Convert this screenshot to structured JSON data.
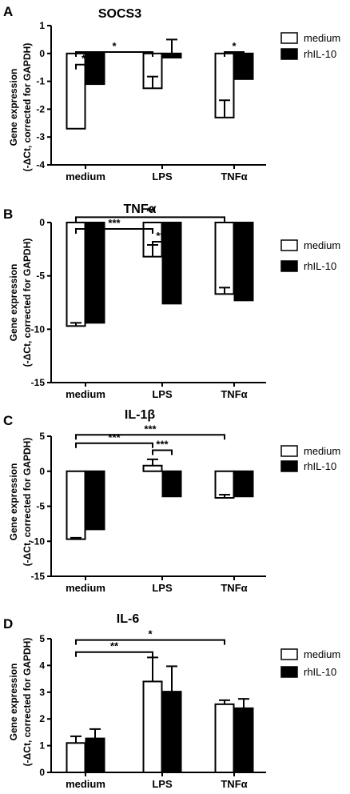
{
  "charts": [
    {
      "panel_letter": "A",
      "title": "SOCS3",
      "ylabel": [
        "Gene expression",
        "(-ΔCt, corrected for GAPDH)"
      ],
      "legend": [
        "medium",
        "rhIL-10"
      ]
    },
    {
      "panel_letter": "B",
      "title": "TNFα",
      "ylabel": [
        "Gene expression",
        "(-ΔCt, corrected for GAPDH)"
      ],
      "legend": [
        "medium",
        "rhIL-10"
      ]
    },
    {
      "panel_letter": "C",
      "title": "IL-1β",
      "ylabel": [
        "Gene expression",
        "(-ΔCt, corrected for GAPDH)"
      ],
      "legend": [
        "medium",
        "rhIL-10"
      ]
    },
    {
      "panel_letter": "D",
      "title": "IL-6",
      "ylabel": [
        "Gene expression",
        "(-ΔCt, corrected for GAPDH)"
      ],
      "legend": [
        "medium",
        "rhIL-10"
      ]
    }
  ],
  "chart_data": [
    {
      "type": "bar",
      "title": "SOCS3",
      "categories": [
        "medium",
        "LPS",
        "TNFα"
      ],
      "ylim": [
        -4,
        1
      ],
      "yticks": [
        1,
        0,
        -1,
        -2,
        -3,
        -4
      ],
      "series": [
        {
          "name": "medium",
          "fill": "#ffffff",
          "values": [
            -2.7,
            -1.25,
            -2.3
          ],
          "errors": [
            0.0,
            0.42,
            0.62
          ]
        },
        {
          "name": "rhIL-10",
          "fill": "#000000",
          "values": [
            -1.1,
            -0.15,
            -0.92
          ],
          "errors": [
            0.22,
            0.65,
            0.52
          ]
        }
      ],
      "significance": [
        {
          "label": "**",
          "from": [
            0,
            0
          ],
          "to": [
            0,
            1
          ],
          "y": -0.4
        },
        {
          "label": "*",
          "from": [
            0,
            0
          ],
          "to": [
            1,
            0
          ],
          "y": 0.05
        },
        {
          "label": "*",
          "from": [
            2,
            0
          ],
          "to": [
            2,
            1
          ],
          "y": 0.05
        }
      ]
    },
    {
      "type": "bar",
      "title": "TNFα",
      "categories": [
        "medium",
        "LPS",
        "TNFα"
      ],
      "ylim": [
        -15,
        0
      ],
      "yticks": [
        0,
        -5,
        -10,
        -15
      ],
      "series": [
        {
          "name": "medium",
          "fill": "#ffffff",
          "values": [
            -9.7,
            -3.2,
            -6.7
          ],
          "errors": [
            0.3,
            1.1,
            0.6
          ]
        },
        {
          "name": "rhIL-10",
          "fill": "#000000",
          "values": [
            -9.4,
            -7.6,
            -7.3
          ],
          "errors": [
            0.25,
            0.75,
            0.2
          ]
        }
      ],
      "significance": [
        {
          "label": "***",
          "from": [
            1,
            0
          ],
          "to": [
            1,
            1
          ],
          "y": -1.8
        },
        {
          "label": "***",
          "from": [
            0,
            0
          ],
          "to": [
            1,
            0
          ],
          "y": -0.6
        },
        {
          "label": "**",
          "from": [
            0,
            0
          ],
          "to": [
            2,
            0
          ],
          "y": 0.5
        }
      ]
    },
    {
      "type": "bar",
      "title": "IL-1β",
      "categories": [
        "medium",
        "LPS",
        "TNFα"
      ],
      "ylim": [
        -15,
        5
      ],
      "yticks": [
        5,
        0,
        -5,
        -10,
        -15
      ],
      "series": [
        {
          "name": "medium",
          "fill": "#ffffff",
          "values": [
            -9.7,
            0.8,
            -3.8
          ],
          "errors": [
            0.2,
            0.9,
            0.45
          ]
        },
        {
          "name": "rhIL-10",
          "fill": "#000000",
          "values": [
            -8.3,
            -3.6,
            -3.6
          ],
          "errors": [
            0.7,
            0.85,
            0.45
          ]
        }
      ],
      "significance": [
        {
          "label": "***",
          "from": [
            1,
            0
          ],
          "to": [
            1,
            1
          ],
          "y": 3.0
        },
        {
          "label": "***",
          "from": [
            0,
            0
          ],
          "to": [
            1,
            0
          ],
          "y": 4.0
        },
        {
          "label": "***",
          "from": [
            0,
            0
          ],
          "to": [
            2,
            0
          ],
          "y": 5.2
        }
      ]
    },
    {
      "type": "bar",
      "title": "IL-6",
      "categories": [
        "medium",
        "LPS",
        "TNFα"
      ],
      "ylim": [
        0,
        5
      ],
      "yticks": [
        5,
        4,
        3,
        2,
        1,
        0
      ],
      "series": [
        {
          "name": "medium",
          "fill": "#ffffff",
          "values": [
            1.1,
            3.4,
            2.55
          ],
          "errors": [
            0.25,
            0.9,
            0.15
          ]
        },
        {
          "name": "rhIL-10",
          "fill": "#000000",
          "values": [
            1.27,
            3.02,
            2.4
          ],
          "errors": [
            0.35,
            0.95,
            0.35
          ]
        }
      ],
      "significance": [
        {
          "label": "**",
          "from": [
            0,
            0
          ],
          "to": [
            1,
            0
          ],
          "y": 4.5
        },
        {
          "label": "*",
          "from": [
            0,
            0
          ],
          "to": [
            2,
            0
          ],
          "y": 4.95
        }
      ]
    }
  ]
}
